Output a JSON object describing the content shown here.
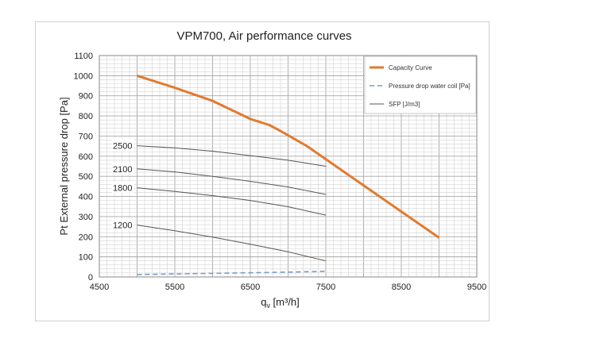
{
  "chart_data": {
    "type": "line",
    "title": "VPM700, Air performance curves",
    "xlabel": "q",
    "xlabel_sub": "v",
    "xlabel_unit": " [m³/h]",
    "ylabel": "Pt External pressure drop [Pa]",
    "xlim": [
      4500,
      9500
    ],
    "ylim": [
      0,
      1100
    ],
    "x_ticks": [
      4500,
      5500,
      6500,
      7500,
      8500,
      9500
    ],
    "y_ticks": [
      0,
      100,
      200,
      300,
      400,
      500,
      600,
      700,
      800,
      900,
      1000,
      1100
    ],
    "grid": true,
    "legend_position": "top-right",
    "colors": {
      "capacity": "#E07B30",
      "coil": "#7A9CCB",
      "sfp": "#555555",
      "grid": "#c8c8c8"
    },
    "series": [
      {
        "name": "Capacity Curve",
        "style": "thick-solid",
        "x": [
          5000,
          5500,
          6000,
          6250,
          6500,
          6750,
          6900,
          7250,
          7500,
          8000,
          8500,
          9000
        ],
        "y": [
          1000,
          940,
          875,
          830,
          785,
          755,
          725,
          650,
          585,
          455,
          325,
          195
        ]
      },
      {
        "name": "Pressure drop water coil [Pa]",
        "style": "dashed",
        "x": [
          5000,
          5500,
          6000,
          6500,
          7000,
          7500
        ],
        "y": [
          12,
          15,
          18,
          21,
          24,
          28
        ]
      },
      {
        "name": "SFP [J/m3]",
        "style": "thin-solid",
        "x": [
          5000,
          5500,
          6000,
          6500,
          7000,
          7500
        ],
        "y": [
          652,
          641,
          625,
          603,
          580,
          550
        ]
      },
      {
        "x": [
          5000,
          5500,
          6000,
          6500,
          7000,
          7500
        ],
        "y": [
          537,
          522,
          500,
          475,
          447,
          410
        ]
      },
      {
        "x": [
          5000,
          5500,
          6000,
          6500,
          7000,
          7500
        ],
        "y": [
          443,
          425,
          404,
          380,
          349,
          307
        ]
      },
      {
        "x": [
          5000,
          5500,
          6000,
          6500,
          7000,
          7500
        ],
        "y": [
          258,
          230,
          198,
          163,
          125,
          80
        ]
      }
    ],
    "sfp_labels": [
      {
        "text": "2500",
        "y": 652
      },
      {
        "text": "2100",
        "y": 537
      },
      {
        "text": "1800",
        "y": 443
      },
      {
        "text": "1200",
        "y": 258
      }
    ]
  }
}
